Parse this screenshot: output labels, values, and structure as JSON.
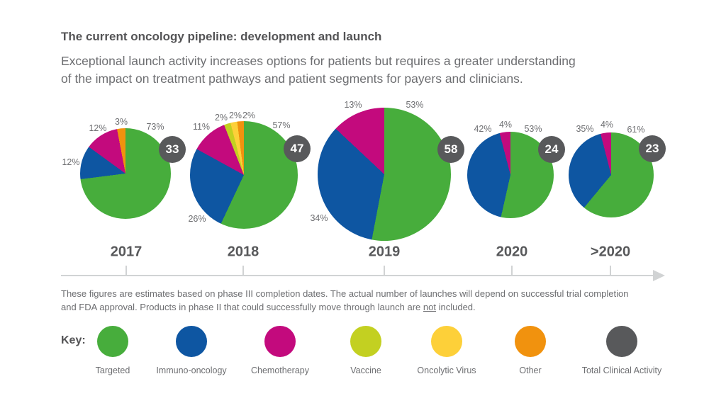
{
  "title": "The current oncology pipeline: development and launch",
  "subtitle_line1": "Exceptional launch activity increases options for patients but requires a greater understanding",
  "subtitle_line2": "of the impact on treatment pathways and patient segments for payers and clinicians.",
  "footnote": {
    "line1": "These figures are estimates based on phase III completion dates. The actual number of launches will depend on successful trial completion",
    "line2_before": "and FDA approval. Products in phase II that could successfully move through launch are ",
    "line2_underlined": "not",
    "line2_after": " included."
  },
  "key_label": "Key:",
  "colors": {
    "Targeted": "#47ad3c",
    "Immuno-oncology": "#0e56a2",
    "Chemotherapy": "#c30a7d",
    "Vaccine": "#c3d021",
    "Oncolytic Virus": "#fdd039",
    "Other": "#f1920e",
    "Total Clinical Activity": "#58595b"
  },
  "chart_data": {
    "type": "pie",
    "title": "The current oncology pipeline: development and launch",
    "legend": [
      "Targeted",
      "Immuno-oncology",
      "Chemotherapy",
      "Vaccine",
      "Oncolytic Virus",
      "Other",
      "Total Clinical Activity"
    ],
    "legend_position": "bottom",
    "x_axis": "timeline of launch years with right-pointing arrow",
    "pies": [
      {
        "category": "2017",
        "total_clinical_activity": 33,
        "slices": [
          {
            "name": "Targeted",
            "pct": 73
          },
          {
            "name": "Immuno-oncology",
            "pct": 12
          },
          {
            "name": "Chemotherapy",
            "pct": 12
          },
          {
            "name": "Other",
            "pct": 3
          }
        ]
      },
      {
        "category": "2018",
        "total_clinical_activity": 47,
        "slices": [
          {
            "name": "Targeted",
            "pct": 57
          },
          {
            "name": "Immuno-oncology",
            "pct": 26
          },
          {
            "name": "Chemotherapy",
            "pct": 11
          },
          {
            "name": "Vaccine",
            "pct": 2
          },
          {
            "name": "Oncolytic Virus",
            "pct": 2
          },
          {
            "name": "Other",
            "pct": 2
          }
        ]
      },
      {
        "category": "2019",
        "total_clinical_activity": 58,
        "slices": [
          {
            "name": "Targeted",
            "pct": 53
          },
          {
            "name": "Immuno-oncology",
            "pct": 34
          },
          {
            "name": "Chemotherapy",
            "pct": 13
          }
        ]
      },
      {
        "category": "2020",
        "total_clinical_activity": 24,
        "slices": [
          {
            "name": "Targeted",
            "pct": 53
          },
          {
            "name": "Immuno-oncology",
            "pct": 42
          },
          {
            "name": "Chemotherapy",
            "pct": 4
          }
        ]
      },
      {
        "category": ">2020",
        "total_clinical_activity": 23,
        "slices": [
          {
            "name": "Targeted",
            "pct": 61
          },
          {
            "name": "Immuno-oncology",
            "pct": 35
          },
          {
            "name": "Chemotherapy",
            "pct": 4
          }
        ]
      }
    ]
  }
}
